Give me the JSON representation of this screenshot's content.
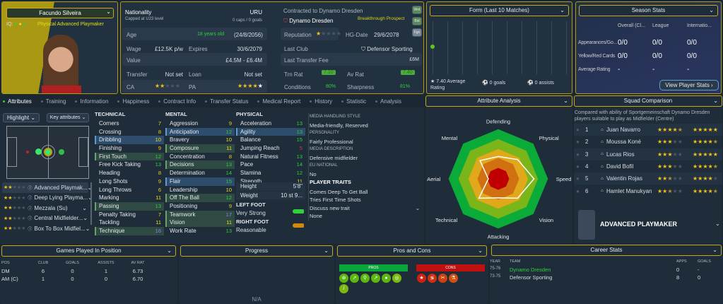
{
  "player": {
    "name": "Facundo Silveira",
    "iq_label": "IQ:",
    "role": "Physical Advanced Playmaker"
  },
  "info": {
    "nationality_label": "Nationality",
    "nationality": "URU",
    "capped": "Capped at U23 level",
    "caps": "0 caps / 0 goals",
    "age_label": "Age",
    "age": "18 years old",
    "dob": "(24/8/2056)",
    "wage_label": "Wage",
    "wage": "£12.5K p/w",
    "expires_label": "Expires",
    "expires": "30/6/2079",
    "value_label": "Value",
    "value": "£4.5M - £6.4M",
    "transfer_label": "Transfer",
    "transfer": "Not set",
    "loan_label": "Loan",
    "loan": "Not set",
    "ca_label": "CA",
    "ca_stars": 2,
    "pa_label": "PA",
    "pa_stars": 4.5,
    "contracted": "Contracted to Dynamo Dresden",
    "club": "Dynamo Dresden",
    "prospect": "Breakthrough Prospect",
    "reputation_label": "Reputation",
    "reputation_stars": 1,
    "hg_label": "HG-Date",
    "hg_date": "29/6/2078",
    "last_club_label": "Last Club",
    "last_club": "Defensor Sporting",
    "last_fee_label": "Last Transfer Fee",
    "last_fee": "£6M",
    "trn_label": "Trn Rat",
    "trn": "7.10",
    "av_label": "Av Rat",
    "av": "7.40",
    "cond_label": "Conditions",
    "cond": "80%",
    "sharp_label": "Sharpness",
    "sharp": "81%",
    "side_buttons": [
      "Wnt",
      "Bid",
      "Fgn"
    ]
  },
  "form": {
    "title": "Form (Last 10 Matches)",
    "ratings": [
      7.4
    ],
    "avg": "7.40 Average Rating",
    "goals": "0 goals",
    "assists": "0 assists"
  },
  "season": {
    "title": "Season Stats",
    "cols": [
      "Overall (Cl...",
      "League",
      "Internatio..."
    ],
    "rows": [
      {
        "label": "Appearances/Go...",
        "vals": [
          "0/0",
          "0/0",
          "0/0"
        ]
      },
      {
        "label": "Yellow/Red Cards",
        "vals": [
          "0/0",
          "0/0",
          "0/0"
        ]
      },
      {
        "label": "Average Rating",
        "vals": [
          "-",
          "-",
          "-"
        ]
      }
    ],
    "button": "View Player Stats"
  },
  "tabs": [
    "Attributes",
    "Training",
    "Information",
    "Happiness",
    "Contract Info",
    "Transfer Status",
    "Medical Report",
    "History",
    "Statistic",
    "Analysis"
  ],
  "left": {
    "highlight": "Highlight",
    "key_attrs": "Key attributes",
    "roles": [
      {
        "stars": 2,
        "name": "Advanced Playmak..."
      },
      {
        "stars": 2,
        "name": "Deep Lying Playma..."
      },
      {
        "stars": 2,
        "name": "Mezzala (Su)"
      },
      {
        "stars": 2,
        "name": "Central Midfielder..."
      },
      {
        "stars": 2,
        "name": "Box To Box Midfiel..."
      }
    ]
  },
  "attributes": {
    "technical": {
      "title": "TECHNICAL",
      "items": [
        [
          "Corners",
          7,
          ""
        ],
        [
          "Crossing",
          8,
          ""
        ],
        [
          "Dribbling",
          10,
          "blue"
        ],
        [
          "Finishing",
          9,
          ""
        ],
        [
          "First Touch",
          12,
          "key"
        ],
        [
          "Free Kick Taking",
          13,
          ""
        ],
        [
          "Heading",
          8,
          ""
        ],
        [
          "Long Shots",
          9,
          ""
        ],
        [
          "Long Throws",
          6,
          ""
        ],
        [
          "Marking",
          11,
          ""
        ],
        [
          "Passing",
          13,
          "key"
        ],
        [
          "Penalty Taking",
          7,
          ""
        ],
        [
          "Tackling",
          11,
          ""
        ],
        [
          "Technique",
          16,
          "key"
        ]
      ]
    },
    "mental": {
      "title": "MENTAL",
      "items": [
        [
          "Aggression",
          9,
          ""
        ],
        [
          "Anticipation",
          12,
          "blue"
        ],
        [
          "Bravery",
          10,
          ""
        ],
        [
          "Composure",
          11,
          "key"
        ],
        [
          "Concentration",
          8,
          ""
        ],
        [
          "Decisions",
          13,
          "key"
        ],
        [
          "Determination",
          14,
          ""
        ],
        [
          "Flair",
          15,
          "blue"
        ],
        [
          "Leadership",
          10,
          ""
        ],
        [
          "Off The Ball",
          12,
          "key"
        ],
        [
          "Positioning",
          9,
          ""
        ],
        [
          "Teamwork",
          17,
          "key"
        ],
        [
          "Vision",
          11,
          "key"
        ],
        [
          "Work Rate",
          13,
          ""
        ]
      ]
    },
    "physical": {
      "title": "PHYSICAL",
      "items": [
        [
          "Acceleration",
          13,
          ""
        ],
        [
          "Agility",
          13,
          "blue"
        ],
        [
          "Balance",
          15,
          ""
        ],
        [
          "Jumping Reach",
          5,
          ""
        ],
        [
          "Natural Fitness",
          13,
          ""
        ],
        [
          "Pace",
          14,
          ""
        ],
        [
          "Stamina",
          12,
          ""
        ],
        [
          "Strength",
          11,
          ""
        ]
      ]
    },
    "height_label": "Height",
    "height": "5'8\"",
    "weight_label": "Weight",
    "weight": "10 st 9...",
    "left_foot_label": "LEFT FOOT",
    "left_foot": "Very Strong",
    "right_foot_label": "RIGHT FOOT",
    "right_foot": "Reasonable"
  },
  "media": {
    "style_label": "MEDIA HANDLING STYLE",
    "style": "Media-friendly, Reserved",
    "personality_label": "PERSONALITY",
    "personality": "Fairly Professional",
    "desc_label": "MEDIA DESCRIPTION",
    "desc": "Defensive midfielder",
    "eu_label": "EU NATIONAL",
    "eu": "No",
    "traits_label": "PLAYER TRAITS",
    "traits": [
      "Comes Deep To Get Ball",
      "Tries First Time Shots"
    ],
    "discuss": "Discuss new trait",
    "none": "None"
  },
  "analysis": {
    "title": "Attribute Analysis",
    "axes": [
      "Defending",
      "Physical",
      "Speed",
      "Vision",
      "Attacking",
      "Technical",
      "Aerial",
      "Mental"
    ],
    "values": [
      0.45,
      0.55,
      0.72,
      0.55,
      0.38,
      0.55,
      0.2,
      0.52
    ]
  },
  "squad": {
    "title": "Squad Comparison",
    "desc": "Compared with ability of Sportgemeinschaft Dynamo Dresden players suitable to play as Midfielder (Centre)",
    "players": [
      {
        "rank": "1",
        "name": "Juan Navarro",
        "ca": 4.5,
        "pa": 5
      },
      {
        "rank": "2",
        "name": "Moussa Koné",
        "ca": 3,
        "pa": 4.5
      },
      {
        "rank": "3",
        "name": "Lucas Rios",
        "ca": 3,
        "pa": 5
      },
      {
        "rank": "4",
        "name": "David Bofil",
        "ca": 3,
        "pa": 4.5
      },
      {
        "rank": "5",
        "name": "Valentin Rojas",
        "ca": 2.5,
        "pa": 4
      },
      {
        "rank": "6",
        "name": "Hamlet Manukyan",
        "ca": 2.5,
        "pa": 4.5
      }
    ],
    "role": "ADVANCED PLAYMAKER"
  },
  "games": {
    "title": "Games Played In Position",
    "cols": [
      "POS",
      "CLUB",
      "GOALS",
      "ASSISTS",
      "AV RAT"
    ],
    "rows": [
      [
        "DM",
        "6",
        "0",
        "1",
        "6.73"
      ],
      [
        "AM (C)",
        "1",
        "0",
        "0",
        "6.70"
      ]
    ]
  },
  "progress": {
    "title": "Progress",
    "na": "N/A"
  },
  "proscons": {
    "title": "Pros and Cons",
    "pros": "PROS",
    "cons": "CONS"
  },
  "career": {
    "title": "Career Stats",
    "cols": [
      "YEAR",
      "TEAM",
      "APPS",
      "GOALS"
    ],
    "rows": [
      [
        "75-76",
        "Dynamo Dresden",
        "0",
        "-"
      ],
      [
        "73-75",
        "Defensor Sporting",
        "8",
        "0"
      ]
    ]
  }
}
